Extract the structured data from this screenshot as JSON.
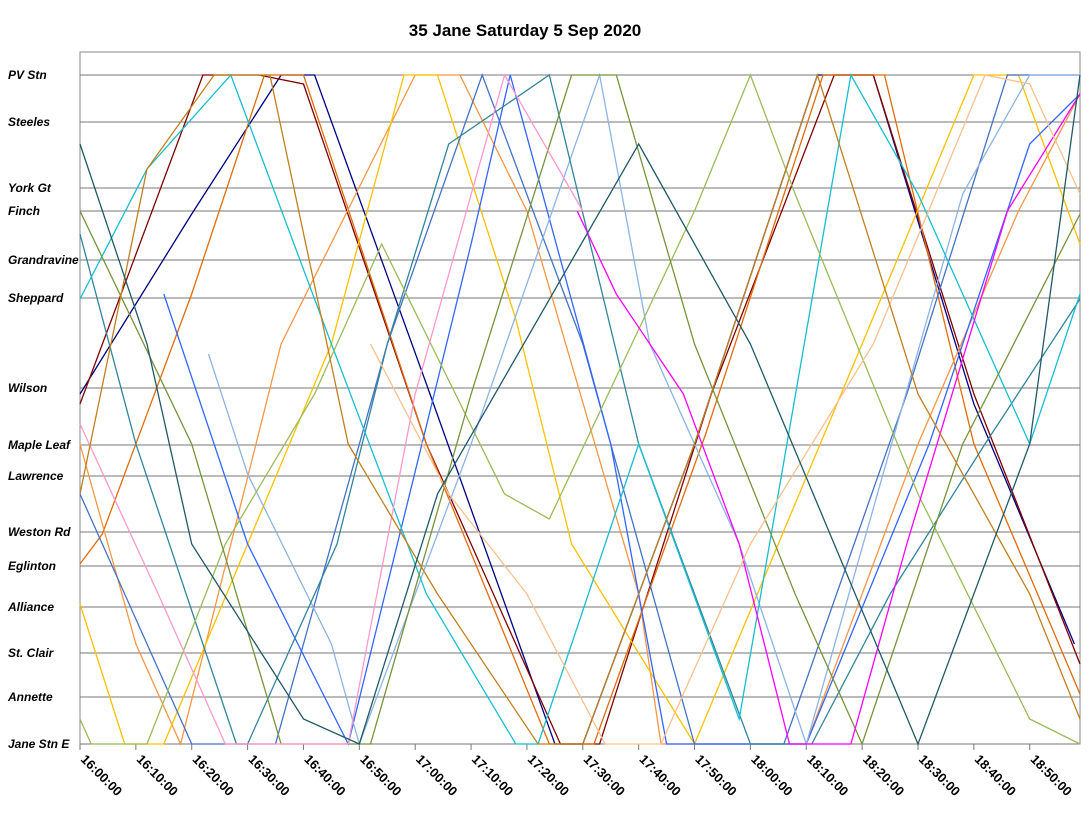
{
  "chart_data": {
    "type": "line",
    "title": "35 Jane Saturday 5 Sep 2020",
    "xlim": [
      0,
      179
    ],
    "xticks": [
      {
        "value": 0,
        "label": "16:00:00"
      },
      {
        "value": 10,
        "label": "16:10:00"
      },
      {
        "value": 20,
        "label": "16:20:00"
      },
      {
        "value": 30,
        "label": "16:30:00"
      },
      {
        "value": 40,
        "label": "16:40:00"
      },
      {
        "value": 50,
        "label": "16:50:00"
      },
      {
        "value": 60,
        "label": "17:00:00"
      },
      {
        "value": 70,
        "label": "17:10:00"
      },
      {
        "value": 80,
        "label": "17:20:00"
      },
      {
        "value": 90,
        "label": "17:30:00"
      },
      {
        "value": 100,
        "label": "17:40:00"
      },
      {
        "value": 110,
        "label": "17:50:00"
      },
      {
        "value": 120,
        "label": "18:00:00"
      },
      {
        "value": 130,
        "label": "18:10:00"
      },
      {
        "value": 140,
        "label": "18:20:00"
      },
      {
        "value": 150,
        "label": "18:30:00"
      },
      {
        "value": 160,
        "label": "18:40:00"
      },
      {
        "value": 170,
        "label": "18:50:00"
      }
    ],
    "ylim": [
      0,
      13.84
    ],
    "yticks": [
      {
        "value": 13.38,
        "label": "PV Stn"
      },
      {
        "value": 12.44,
        "label": "Steeles"
      },
      {
        "value": 11.12,
        "label": "York Gt"
      },
      {
        "value": 10.66,
        "label": "Finch"
      },
      {
        "value": 9.68,
        "label": "Grandravine"
      },
      {
        "value": 8.92,
        "label": "Sheppard"
      },
      {
        "value": 7.12,
        "label": "Wilson"
      },
      {
        "value": 5.98,
        "label": "Maple Leaf"
      },
      {
        "value": 5.36,
        "label": "Lawrence"
      },
      {
        "value": 4.24,
        "label": "Weston Rd"
      },
      {
        "value": 3.56,
        "label": "Eglinton"
      },
      {
        "value": 2.74,
        "label": "Alliance"
      },
      {
        "value": 1.82,
        "label": "St. Clair"
      },
      {
        "value": 0.94,
        "label": "Annette"
      },
      {
        "value": 0,
        "label": "Jane Stn E"
      }
    ],
    "grid": true,
    "series": [
      {
        "color": "#000080",
        "x": [
          0,
          20,
          36,
          42,
          62,
          85,
          90,
          110,
          132,
          142,
          160,
          178
        ],
        "values": [
          7.0,
          10.6,
          13.38,
          13.38,
          7.2,
          0,
          0,
          6.0,
          13.38,
          13.38,
          6.8,
          2.0
        ]
      },
      {
        "color": "#800000",
        "x": [
          0,
          22,
          32,
          40,
          62,
          86,
          93,
          113,
          135,
          142,
          160,
          179
        ],
        "values": [
          6.8,
          13.38,
          13.38,
          13.2,
          6.0,
          0,
          0,
          7.0,
          13.38,
          13.38,
          7.0,
          1.6
        ]
      },
      {
        "color": "#e26b0a",
        "x": [
          0,
          4,
          20,
          33,
          40,
          62,
          84,
          92,
          112,
          133,
          144,
          160,
          179
        ],
        "values": [
          3.6,
          4.2,
          9.0,
          13.38,
          13.38,
          6.0,
          0,
          0,
          6.2,
          13.38,
          13.38,
          6.0,
          1.0
        ]
      },
      {
        "color": "#f79646",
        "x": [
          0,
          10,
          18,
          36,
          60,
          68,
          80,
          100,
          104,
          130,
          150,
          168,
          179
        ],
        "values": [
          6.0,
          2.0,
          0,
          8.0,
          13.38,
          13.38,
          10.66,
          3.0,
          0,
          0,
          6.0,
          10.66,
          13.0
        ]
      },
      {
        "color": "#ffc000",
        "x": [
          0,
          8,
          15,
          30,
          45,
          58,
          64,
          78,
          88,
          110,
          140,
          160,
          168,
          179
        ],
        "values": [
          2.8,
          0,
          0,
          4.0,
          8.0,
          13.38,
          13.38,
          8.5,
          4.0,
          0,
          8.0,
          13.38,
          13.38,
          10.0
        ]
      },
      {
        "color": "#4472c4",
        "x": [
          0,
          20,
          35,
          55,
          72,
          90,
          110,
          126,
          148,
          166,
          179
        ],
        "values": [
          5.0,
          0,
          0,
          8.0,
          13.38,
          8.0,
          0,
          0,
          7.0,
          13.38,
          13.38
        ]
      },
      {
        "color": "#3366ff",
        "x": [
          15,
          30,
          48,
          70,
          77,
          95,
          105,
          130,
          152,
          170,
          179
        ],
        "values": [
          9.0,
          4.0,
          0,
          10.0,
          13.38,
          6.0,
          0,
          0,
          6.0,
          12.0,
          13.0
        ]
      },
      {
        "color": "#8db4e2",
        "x": [
          23,
          30,
          45,
          50,
          70,
          93,
          102,
          118,
          130,
          158,
          170,
          179
        ],
        "values": [
          7.8,
          5.4,
          2.0,
          0,
          6.0,
          13.38,
          8.0,
          4.0,
          0,
          11.0,
          13.38,
          13.38
        ]
      },
      {
        "color": "#31859c",
        "x": [
          0,
          10,
          28,
          30,
          46,
          55,
          66,
          84,
          100,
          120,
          131,
          145,
          162,
          179
        ],
        "values": [
          10.2,
          6.0,
          0,
          0,
          4.0,
          8.0,
          12.0,
          13.38,
          6.0,
          0,
          0,
          3.0,
          6.0,
          8.9
        ]
      },
      {
        "color": "#17becf",
        "x": [
          0,
          12,
          27,
          45,
          62,
          78,
          82,
          100,
          118,
          138,
          150,
          170,
          179
        ],
        "values": [
          8.9,
          11.5,
          13.38,
          8.0,
          3.0,
          0,
          0,
          6.0,
          0.5,
          13.38,
          11.0,
          6.0,
          9.0
        ]
      },
      {
        "color": "#9bbb59",
        "x": [
          0,
          2,
          12,
          26,
          42,
          54,
          76,
          84,
          110,
          120,
          128,
          150,
          170,
          179
        ],
        "values": [
          0.5,
          0,
          0,
          4.0,
          7.0,
          10.0,
          5.0,
          4.5,
          10.66,
          13.38,
          11.0,
          5.0,
          0.5,
          0
        ]
      },
      {
        "color": "#77933c",
        "x": [
          0,
          20,
          36,
          52,
          70,
          88,
          96,
          110,
          128,
          140,
          158,
          179
        ],
        "values": [
          10.66,
          6.0,
          0,
          0,
          7.0,
          13.38,
          13.38,
          8.0,
          3.0,
          0,
          6.0,
          10.6
        ]
      },
      {
        "color": "#ff99cc",
        "x": [
          0,
          14,
          26,
          48,
          60,
          76,
          90
        ],
        "values": [
          6.4,
          3.0,
          0,
          0,
          7.0,
          13.38,
          10.66
        ]
      },
      {
        "color": "#ff00ff",
        "x": [
          89,
          96,
          108,
          118,
          127,
          138,
          148,
          166,
          179
        ],
        "values": [
          10.66,
          9.0,
          7.0,
          4.0,
          0,
          0,
          4.0,
          10.66,
          13.0
        ]
      },
      {
        "color": "#fac090",
        "x": [
          52,
          66,
          80,
          94,
          104,
          120,
          142,
          162,
          170,
          179
        ],
        "values": [
          8.0,
          5.0,
          3.0,
          0,
          0,
          4.0,
          8.0,
          13.38,
          13.2,
          11.0
        ]
      },
      {
        "color": "#c0801f",
        "x": [
          0,
          12,
          24,
          34,
          48,
          64,
          82,
          90,
          110,
          132,
          150,
          170,
          179
        ],
        "values": [
          5.0,
          11.5,
          13.38,
          13.38,
          6.0,
          3.0,
          0,
          0,
          6.0,
          13.38,
          7.0,
          3.0,
          0.5
        ]
      },
      {
        "color": "#215967",
        "x": [
          0,
          12,
          20,
          40,
          50,
          64,
          100,
          120,
          150,
          170,
          179
        ],
        "values": [
          12.0,
          8.0,
          4.0,
          0.5,
          0,
          5.0,
          12.0,
          8.0,
          0,
          6.0,
          13.38
        ]
      }
    ]
  }
}
